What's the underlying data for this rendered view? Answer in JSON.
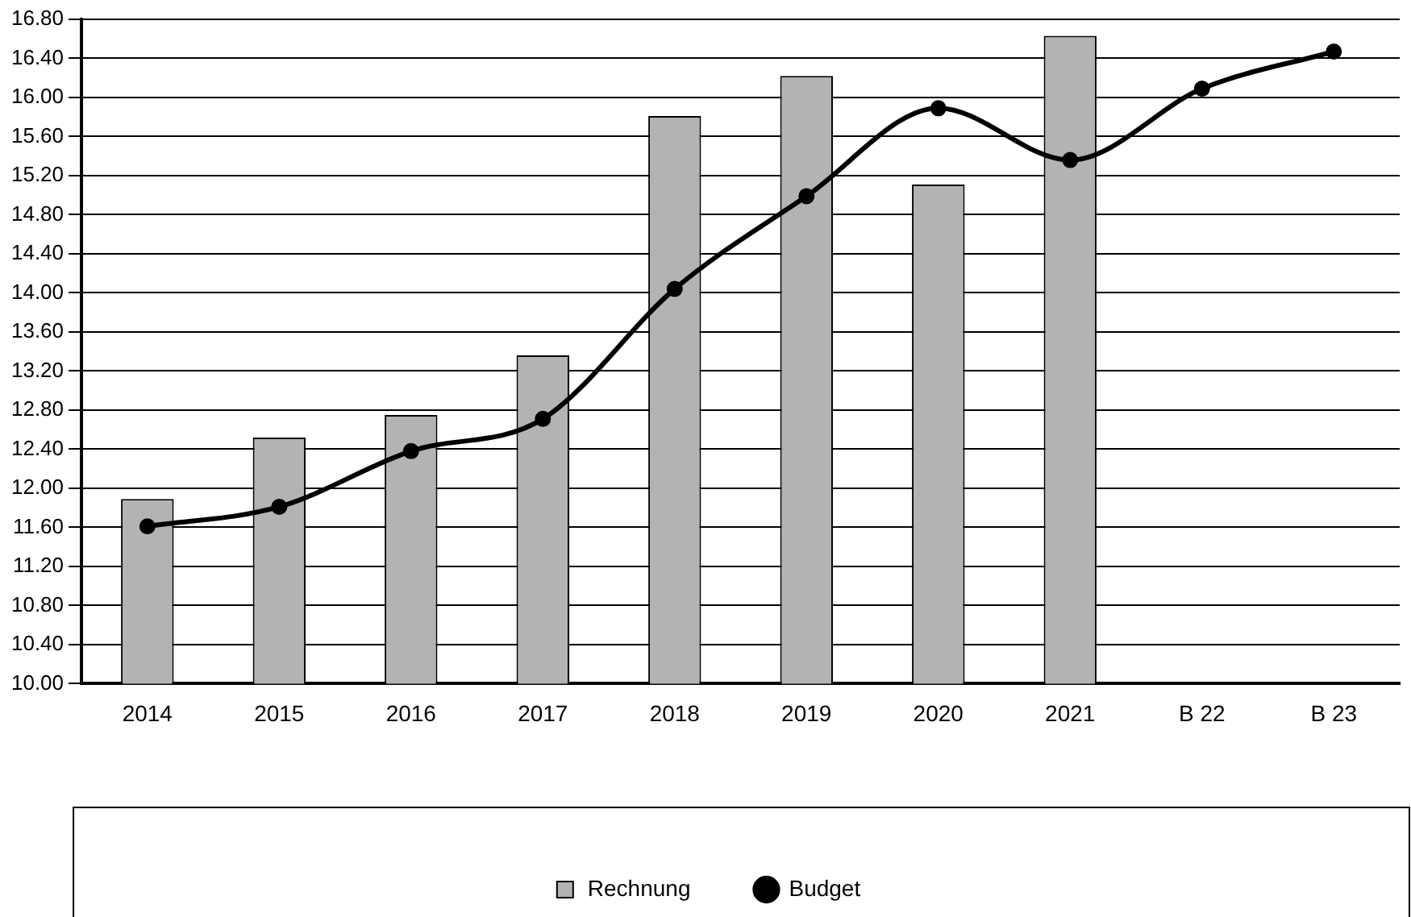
{
  "chart_data": {
    "type": "bar",
    "categories": [
      "2014",
      "2015",
      "2016",
      "2017",
      "2018",
      "2019",
      "2020",
      "2021",
      "B 22",
      "B 23"
    ],
    "series": [
      {
        "name": "Rechnung",
        "color": "#b3b3b3",
        "values": [
          11.89,
          12.52,
          12.75,
          13.36,
          15.81,
          16.22,
          15.11,
          16.63,
          null,
          null
        ]
      },
      {
        "name": "Budget",
        "type": "line",
        "color": "#000000",
        "values": [
          11.61,
          11.81,
          12.38,
          12.71,
          14.04,
          14.99,
          15.89,
          15.36,
          16.09,
          16.47
        ]
      }
    ],
    "ylim": [
      10,
      16.8
    ],
    "yticks": [
      {
        "value": 10,
        "label": "10.00"
      },
      {
        "value": 10.4,
        "label": "10.40"
      },
      {
        "value": 10.8,
        "label": "10.80"
      },
      {
        "value": 11.2,
        "label": "11.20"
      },
      {
        "value": 11.6,
        "label": "11.60"
      },
      {
        "value": 12,
        "label": "12.00"
      },
      {
        "value": 12.4,
        "label": "12.40"
      },
      {
        "value": 12.8,
        "label": "12.80"
      },
      {
        "value": 13.2,
        "label": "13.20"
      },
      {
        "value": 13.6,
        "label": "13.60"
      },
      {
        "value": 14,
        "label": "14.00"
      },
      {
        "value": 14.4,
        "label": "14.40"
      },
      {
        "value": 14.8,
        "label": "14.80"
      },
      {
        "value": 15.2,
        "label": "15.20"
      },
      {
        "value": 15.6,
        "label": "15.60"
      },
      {
        "value": 16,
        "label": "16.00"
      },
      {
        "value": 16.4,
        "label": "16.40"
      },
      {
        "value": 16.8,
        "label": "16.80"
      }
    ],
    "grid": "y",
    "legend": "bottom",
    "marker": "circle",
    "line_style": "solid"
  }
}
